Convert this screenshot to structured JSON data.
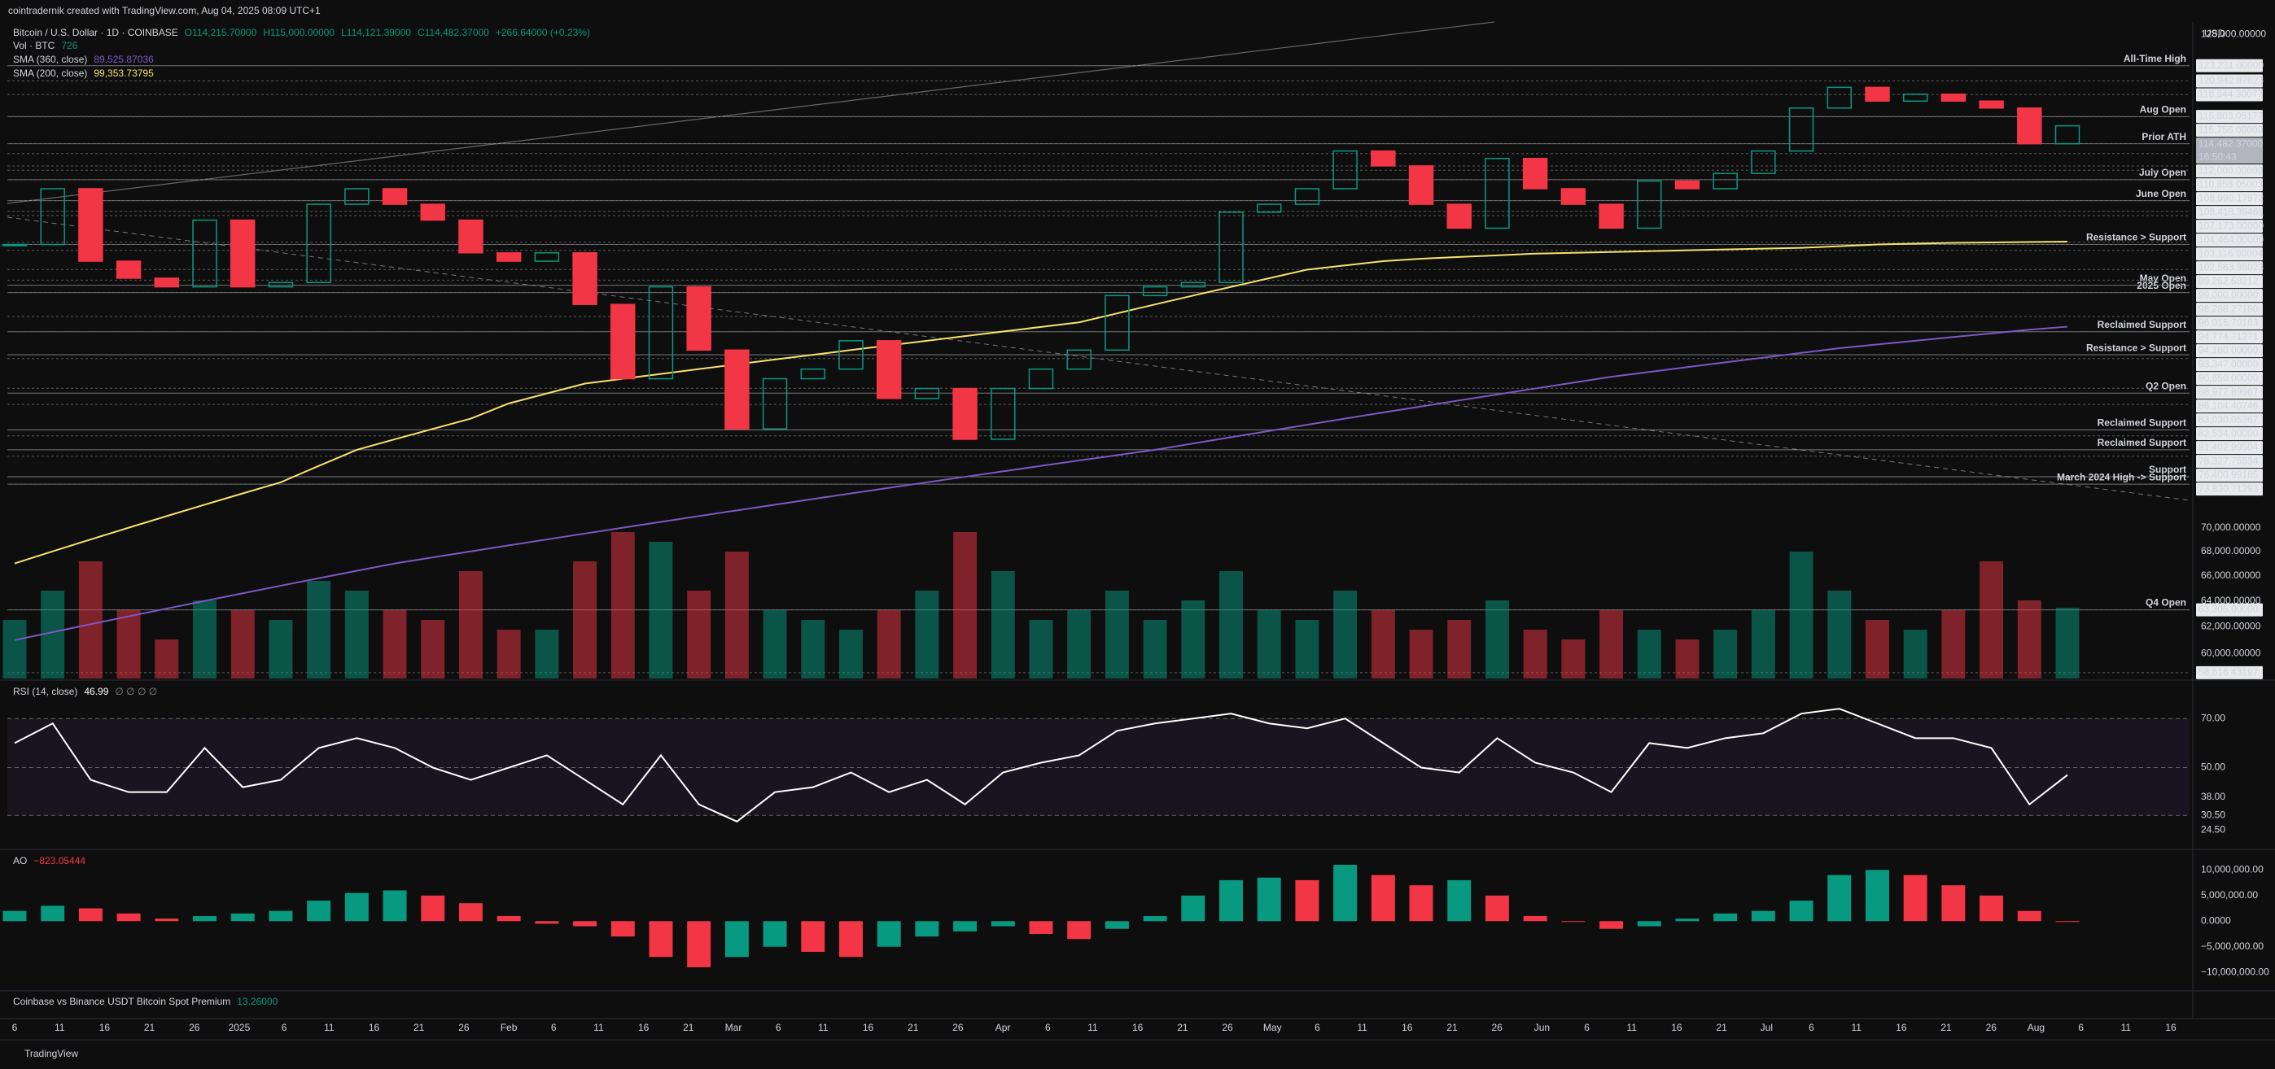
{
  "chart_data": {
    "type": "candlestick",
    "header": {
      "credit": "cointradernik created with TradingView.com, Aug 04, 2025 08:09 UTC+1",
      "symbol": "Bitcoin / U.S. Dollar · 1D · COINBASE",
      "ohlc": [
        "O114,215.70000",
        "H115,000.00000",
        "L114,121.39000",
        "C114,482.37000"
      ],
      "change": "+266.64000 (+0.23%)",
      "volume_label": "Vol · BTC",
      "volume_value": "726",
      "sma360_value": "89,525.87036",
      "sma200_value": "99,353.73795"
    },
    "currency": "USD",
    "x_labels": [
      "6",
      "11",
      "16",
      "21",
      "26",
      "2025",
      "6",
      "11",
      "16",
      "21",
      "26",
      "Feb",
      "6",
      "11",
      "16",
      "21",
      "Mar",
      "6",
      "11",
      "16",
      "21",
      "26",
      "Apr",
      "6",
      "11",
      "16",
      "21",
      "26",
      "May",
      "6",
      "11",
      "16",
      "21",
      "26",
      "Jun",
      "6",
      "11",
      "16",
      "21",
      "Jul",
      "6",
      "11",
      "16",
      "21",
      "26",
      "Aug",
      "6",
      "11",
      "16"
    ],
    "closes": [
      99000,
      106000,
      97000,
      95000,
      94000,
      102000,
      94000,
      94500,
      104000,
      106000,
      104000,
      102000,
      98000,
      97000,
      98000,
      92000,
      84000,
      94000,
      87000,
      79000,
      84000,
      85000,
      88000,
      82000,
      83000,
      78000,
      83000,
      85000,
      87000,
      93000,
      94000,
      94500,
      103000,
      104000,
      106000,
      111000,
      109000,
      104000,
      101000,
      110000,
      106000,
      104000,
      101000,
      107000,
      106000,
      108000,
      111000,
      117000,
      120000,
      118000,
      119000,
      118000,
      117000,
      112000,
      114482.37
    ],
    "log_scale": true,
    "ylim": [
      58200,
      130000
    ],
    "yticks": [
      {
        "value": 128000,
        "label": "128,000.00000"
      },
      {
        "value": 70000,
        "label": "70,000.00000"
      },
      {
        "value": 68000,
        "label": "68,000.00000"
      },
      {
        "value": 66000,
        "label": "66,000.00000"
      },
      {
        "value": 64000,
        "label": "64,000.00000"
      },
      {
        "value": 62000,
        "label": "62,000.00000"
      },
      {
        "value": 60000,
        "label": "60,000.00000"
      }
    ],
    "price_marks": [
      {
        "value": 123231,
        "label": "123,231.00000"
      },
      {
        "value": 120942.87823,
        "label": "120,942.87823"
      },
      {
        "value": 118944.30077,
        "label": "118,944.30077"
      },
      {
        "value": 115803.06177,
        "label": "115,803.06177"
      },
      {
        "value": 115756,
        "label": "115,756.00000"
      },
      {
        "value": 112000,
        "label": "112,000.00000"
      },
      {
        "value": 110658.05003,
        "label": "110,658.05003"
      },
      {
        "value": 108990.17972,
        "label": "108,990.17972"
      },
      {
        "value": 108418.39461,
        "label": "108,418.39461"
      },
      {
        "value": 107173,
        "label": "107,173.00000"
      },
      {
        "value": 104464,
        "label": "104,464.00000"
      },
      {
        "value": 103116.90004,
        "label": "103,116.90004"
      },
      {
        "value": 102563.36023,
        "label": "102,563.36023"
      },
      {
        "value": 99262.68212,
        "label": "99,262.68212"
      },
      {
        "value": 99000,
        "label": "99,000.00000"
      },
      {
        "value": 98288.2718,
        "label": "98,288.27180"
      },
      {
        "value": 96015.70163,
        "label": "96,015.70163"
      },
      {
        "value": 94774.71271,
        "label": "94,774.71271"
      },
      {
        "value": 94180,
        "label": "94,180.00000"
      },
      {
        "value": 93347,
        "label": "93,347.00000"
      },
      {
        "value": 90650,
        "label": "90,650.00000"
      },
      {
        "value": 88977.89967,
        "label": "88,977.89967"
      },
      {
        "value": 86104.40746,
        "label": "86,104.40746"
      },
      {
        "value": 83030.05367,
        "label": "83,030.05367"
      },
      {
        "value": 82534,
        "label": "82,534.00000"
      },
      {
        "value": 81402.99504,
        "label": "81,402.99504"
      },
      {
        "value": 78327.75534,
        "label": "78,327.75534"
      },
      {
        "value": 76400.99185,
        "label": "76,400.99185"
      },
      {
        "value": 73830.71293,
        "label": "73,830.71293"
      },
      {
        "value": 63305,
        "label": "63,305.00000"
      },
      {
        "value": 58616.43197,
        "label": "58,616.43197"
      }
    ],
    "current_price": {
      "value": 114482.37,
      "label": "114,482.37000"
    },
    "countdown": "16:50:43",
    "levels": [
      {
        "text": "All-Time High",
        "value": 123231
      },
      {
        "text": "Aug Open",
        "value": 115756
      },
      {
        "text": "Prior ATH",
        "value": 112000
      },
      {
        "text": "July Open",
        "value": 107173
      },
      {
        "text": "June Open",
        "value": 104464
      },
      {
        "text": "Resistance > Support",
        "value": 99000
      },
      {
        "text": "May Open",
        "value": 94180
      },
      {
        "text": "2025 Open",
        "value": 93347
      },
      {
        "text": "Reclaimed Support",
        "value": 88977.89967
      },
      {
        "text": "Resistance > Support",
        "value": 86500
      },
      {
        "text": "Q2 Open",
        "value": 82534
      },
      {
        "text": "Reclaimed Support",
        "value": 78900
      },
      {
        "text": "Reclaimed Support",
        "value": 77000
      },
      {
        "text": "Support",
        "value": 74500
      },
      {
        "text": "March 2024 High -> Support",
        "value": 73830.71293
      },
      {
        "text": "Q4 Open",
        "value": 63305
      }
    ],
    "series": [
      {
        "name": "SMA (360, close)",
        "color": "#7e57c2",
        "values": [
          61000,
          61600,
          62200,
          62800,
          63400,
          64000,
          64600,
          65200,
          65800,
          66400,
          67000,
          67500,
          68000,
          68500,
          69000,
          69500,
          70000,
          70500,
          71000,
          71500,
          72000,
          72500,
          73000,
          73500,
          74000,
          74500,
          75000,
          75500,
          76000,
          76500,
          77000,
          77600,
          78200,
          78800,
          79400,
          80000,
          80600,
          81200,
          81800,
          82400,
          83000,
          83600,
          84200,
          84700,
          85200,
          85700,
          86200,
          86700,
          87200,
          87600,
          88000,
          88400,
          88800,
          89200,
          89525.87036
        ]
      },
      {
        "name": "SMA (200, close)",
        "color": "#f7e26b",
        "values": [
          67000,
          68000,
          69000,
          70000,
          71000,
          72000,
          73000,
          74000,
          75500,
          77000,
          78000,
          79000,
          80000,
          81500,
          82500,
          83500,
          84000,
          84500,
          85000,
          85500,
          86000,
          86500,
          87000,
          87500,
          88000,
          88500,
          89000,
          89500,
          90000,
          91000,
          92000,
          93000,
          94000,
          95000,
          96000,
          96500,
          97000,
          97300,
          97500,
          97700,
          97900,
          98000,
          98100,
          98200,
          98300,
          98400,
          98500,
          98600,
          98800,
          99000,
          99100,
          99200,
          99250,
          99300,
          99353.73795
        ]
      }
    ],
    "volume": {
      "values": [
        600,
        900,
        1200,
        700,
        400,
        800,
        700,
        600,
        1000,
        900,
        700,
        600,
        1100,
        500,
        500,
        1200,
        1500,
        1400,
        900,
        1300,
        700,
        600,
        500,
        700,
        900,
        1500,
        1100,
        600,
        700,
        900,
        600,
        800,
        1100,
        700,
        600,
        900,
        700,
        500,
        600,
        800,
        500,
        400,
        700,
        500,
        400,
        500,
        700,
        1300,
        900,
        600,
        500,
        700,
        1200,
        800,
        726
      ]
    },
    "rsi": {
      "label": "RSI (14, close)",
      "value_text": "46.99",
      "extra": "∅ ∅ ∅ ∅",
      "values": [
        60,
        68,
        45,
        40,
        40,
        58,
        42,
        45,
        58,
        62,
        58,
        50,
        45,
        50,
        55,
        45,
        35,
        55,
        35,
        28,
        40,
        42,
        48,
        40,
        45,
        35,
        48,
        52,
        55,
        65,
        68,
        70,
        72,
        68,
        66,
        70,
        60,
        50,
        48,
        62,
        52,
        48,
        40,
        60,
        58,
        62,
        64,
        72,
        74,
        68,
        62,
        62,
        58,
        35,
        46.99
      ],
      "ylim": [
        17,
        85
      ],
      "yticks": [
        {
          "value": 70,
          "label": "70.00"
        },
        {
          "value": 50,
          "label": "50.00"
        },
        {
          "value": 38,
          "label": "38.00"
        },
        {
          "value": 30.5,
          "label": "30.50"
        },
        {
          "value": 24.5,
          "label": "24.50"
        }
      ]
    },
    "ao": {
      "label": "AO",
      "value_text": "−823.05444",
      "values": [
        2000000,
        3000000,
        2500000,
        1500000,
        500000,
        1000000,
        1500000,
        2000000,
        4000000,
        5500000,
        6000000,
        5000000,
        3500000,
        1000000,
        -500000,
        -1000000,
        -3000000,
        -7000000,
        -9000000,
        -7000000,
        -5000000,
        -6000000,
        -7000000,
        -5000000,
        -3000000,
        -2000000,
        -1000000,
        -2500000,
        -3500000,
        -1500000,
        1000000,
        5000000,
        8000000,
        8500000,
        8000000,
        11000000,
        9000000,
        7000000,
        8000000,
        5000000,
        1000000,
        0,
        -1500000,
        -1000000,
        500000,
        1500000,
        2000000,
        4000000,
        9000000,
        10000000,
        9000000,
        7000000,
        5000000,
        2000000,
        -823.05444
      ],
      "ylim": [
        -13300000,
        13700000
      ],
      "yticks": [
        {
          "value": 10000000,
          "label": "10,000,000.00"
        },
        {
          "value": 5000000,
          "label": "5,000,000.00"
        },
        {
          "value": 0,
          "label": "0.0000"
        },
        {
          "value": -5000000,
          "label": "−5,000,000.00"
        },
        {
          "value": -10000000,
          "label": "−10,000,000.00"
        }
      ]
    },
    "premium": {
      "label": "Coinbase vs Binance USDT Bitcoin Spot Premium",
      "value_text": "13.26000"
    },
    "footer": "TradingView",
    "up_color": "#089981",
    "down_color": "#f23645"
  }
}
